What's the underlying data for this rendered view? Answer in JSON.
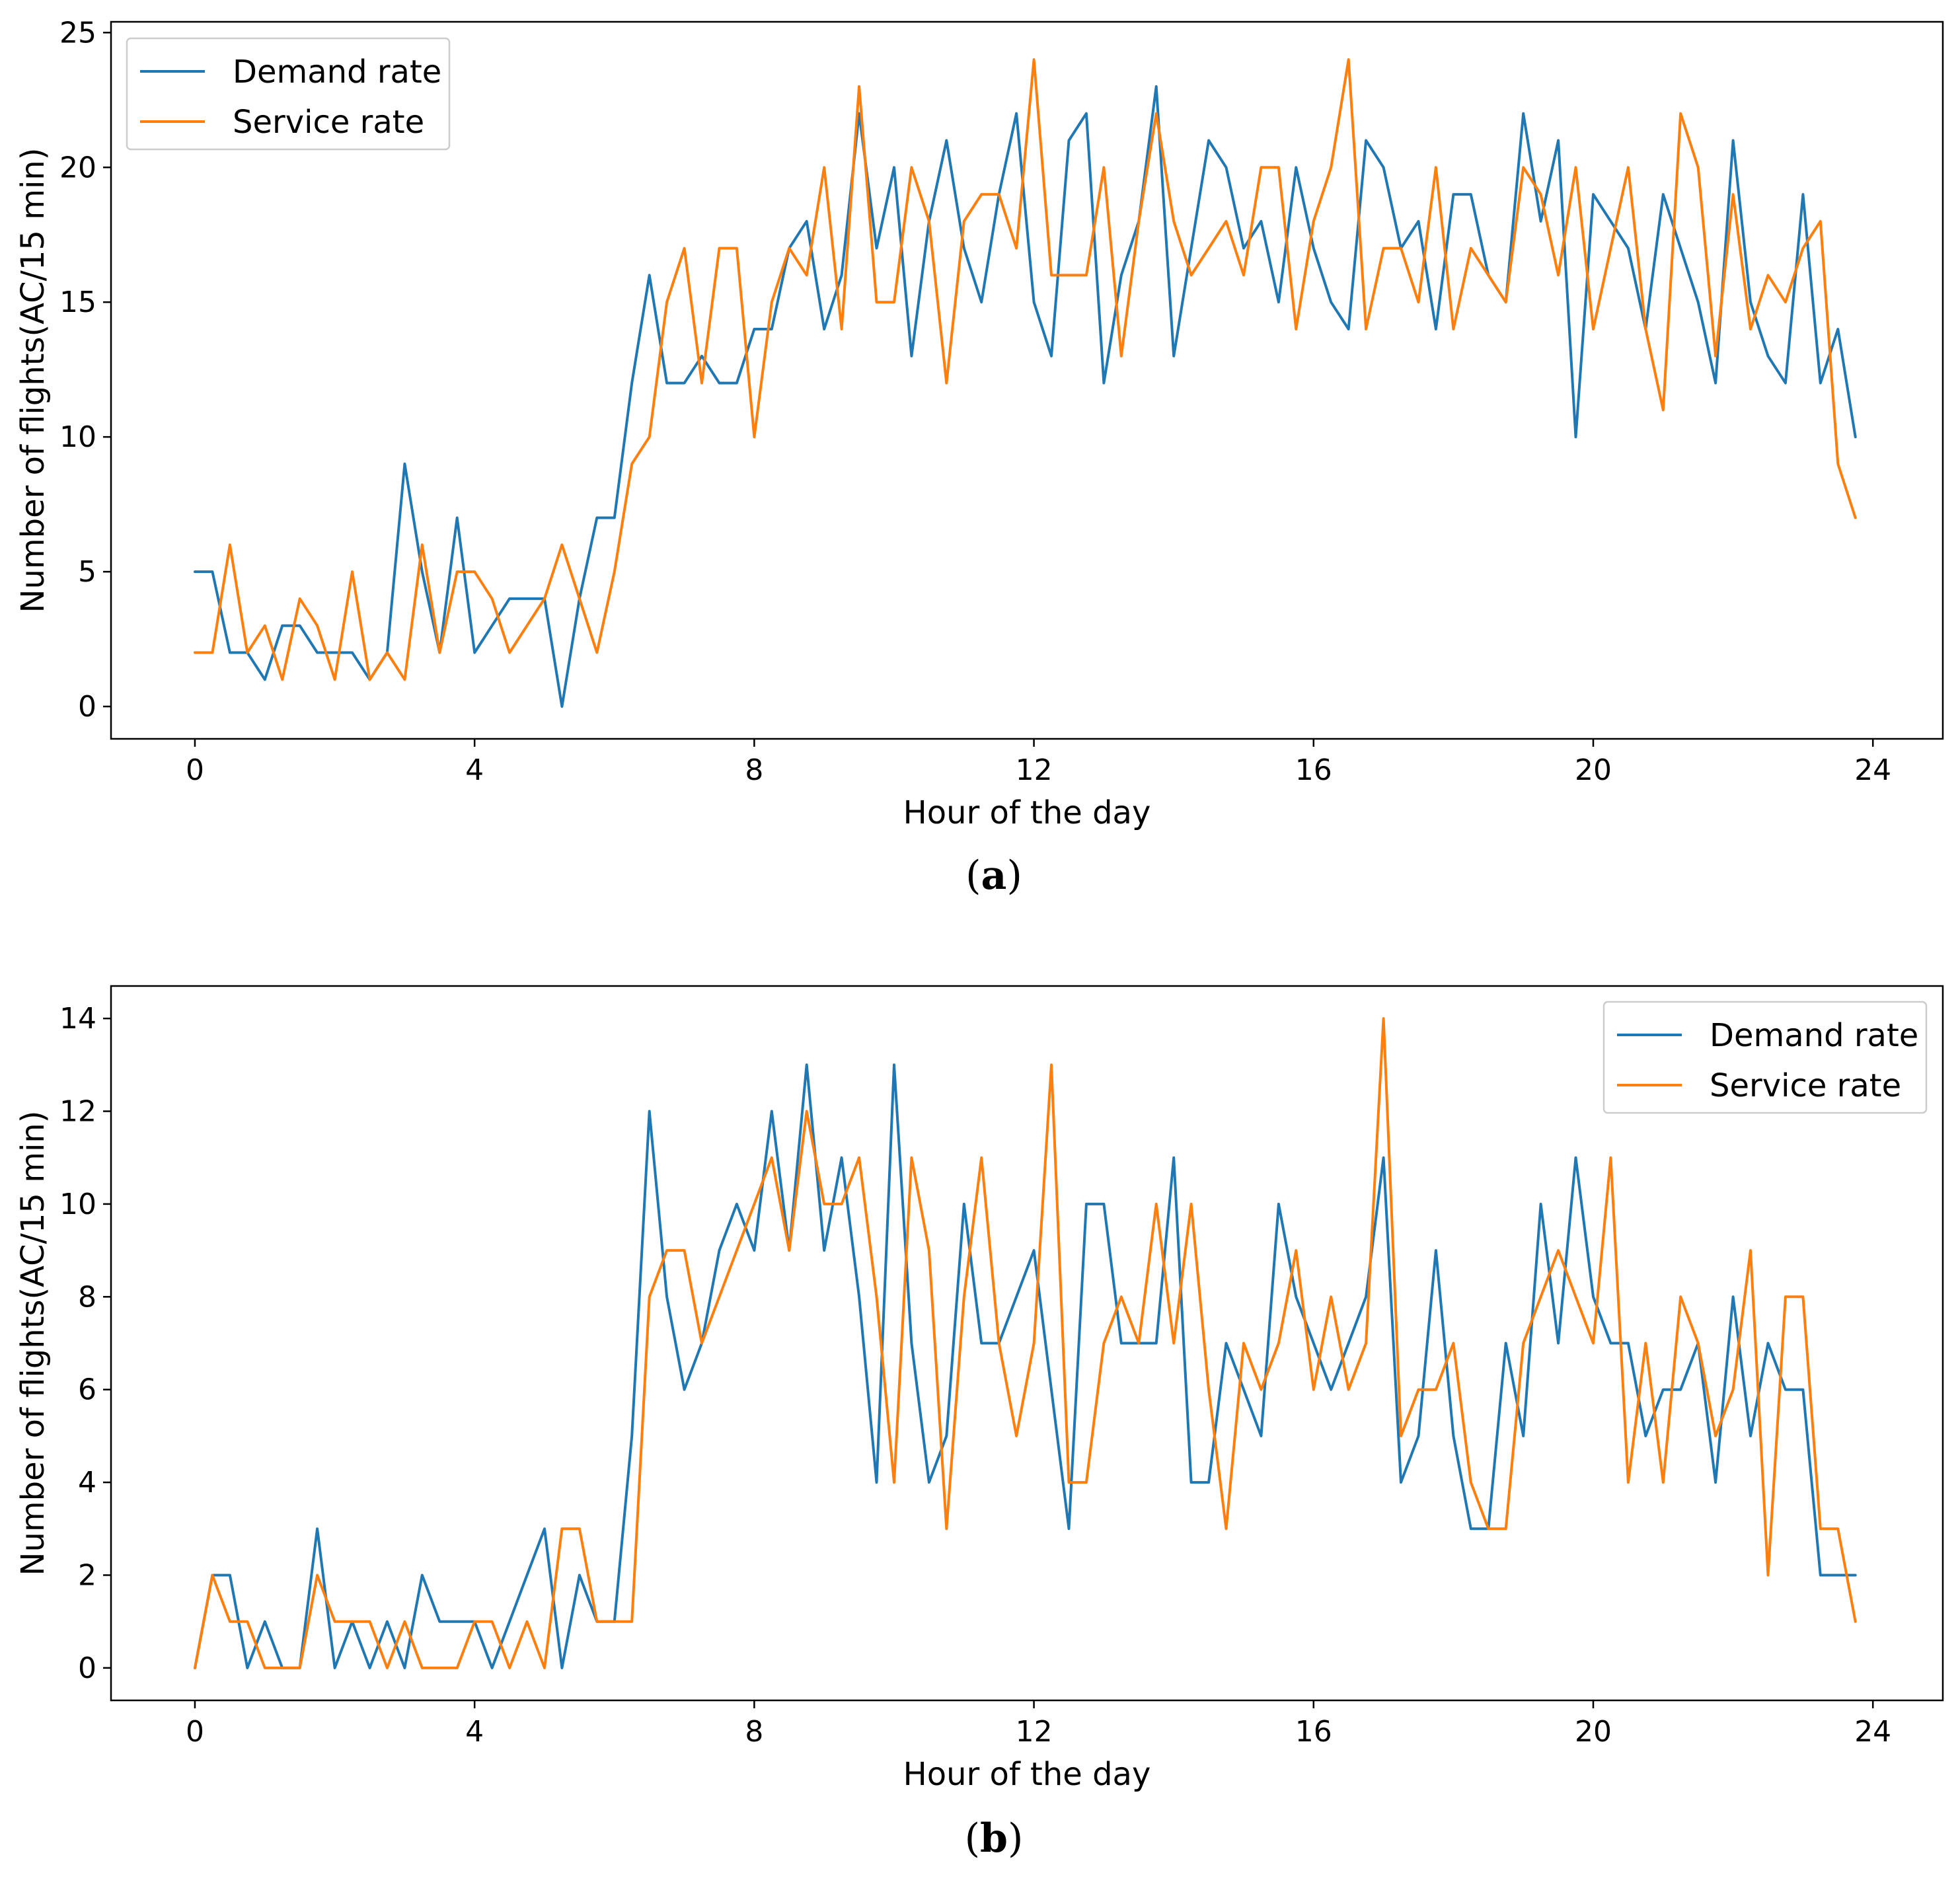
{
  "colors": {
    "demand": "#1f77b4",
    "service": "#ff7f0e"
  },
  "chart_data": [
    {
      "type": "line",
      "panel_label": "a",
      "xlabel": "Hour of the day",
      "ylabel": "Number of flights(AC/15 min)",
      "xlim": [
        -1.2,
        25
      ],
      "ylim": [
        -1.2,
        25.4
      ],
      "xticks": [
        0,
        4,
        8,
        12,
        16,
        20,
        24
      ],
      "yticks": [
        0,
        5,
        10,
        15,
        20,
        25
      ],
      "legend_position": "top-left",
      "grid": false,
      "x_step_hours": 0.25,
      "series": [
        {
          "name": "Demand rate",
          "color_key": "demand",
          "values": [
            5,
            5,
            2,
            2,
            1,
            3,
            3,
            2,
            2,
            2,
            1,
            2,
            9,
            5,
            2,
            7,
            2,
            3,
            4,
            4,
            4,
            0,
            4,
            7,
            7,
            12,
            16,
            12,
            12,
            13,
            12,
            12,
            14,
            14,
            17,
            18,
            14,
            16,
            22,
            17,
            20,
            13,
            18,
            21,
            17,
            15,
            19,
            22,
            15,
            13,
            21,
            22,
            12,
            16,
            18,
            23,
            13,
            17,
            21,
            20,
            17,
            18,
            15,
            20,
            17,
            15,
            14,
            21,
            20,
            17,
            18,
            14,
            19,
            19,
            16,
            15,
            22,
            18,
            21,
            10,
            19,
            18,
            17,
            14,
            19,
            17,
            15,
            12,
            21,
            15,
            13,
            12,
            19,
            12,
            14,
            10
          ]
        },
        {
          "name": "Service rate",
          "color_key": "service",
          "values": [
            2,
            2,
            6,
            2,
            3,
            1,
            4,
            3,
            1,
            5,
            1,
            2,
            1,
            6,
            2,
            5,
            5,
            4,
            2,
            3,
            4,
            6,
            4,
            2,
            5,
            9,
            10,
            15,
            17,
            12,
            17,
            17,
            10,
            15,
            17,
            16,
            20,
            14,
            23,
            15,
            15,
            20,
            18,
            12,
            18,
            19,
            19,
            17,
            24,
            16,
            16,
            16,
            20,
            13,
            18,
            22,
            18,
            16,
            17,
            18,
            16,
            20,
            20,
            14,
            18,
            20,
            24,
            14,
            17,
            17,
            15,
            20,
            14,
            17,
            16,
            15,
            20,
            19,
            16,
            20,
            14,
            17,
            20,
            14,
            11,
            22,
            20,
            13,
            19,
            14,
            16,
            15,
            17,
            18,
            9,
            7
          ]
        }
      ]
    },
    {
      "type": "line",
      "panel_label": "b",
      "xlabel": "Hour of the day",
      "ylabel": "Number of flights(AC/15 min)",
      "xlim": [
        -1.2,
        25
      ],
      "ylim": [
        -0.7,
        14.7
      ],
      "xticks": [
        0,
        4,
        8,
        12,
        16,
        20,
        24
      ],
      "yticks": [
        0,
        2,
        4,
        6,
        8,
        10,
        12,
        14
      ],
      "legend_position": "top-right",
      "grid": false,
      "x_step_hours": 0.25,
      "series": [
        {
          "name": "Demand rate",
          "color_key": "demand",
          "values": [
            0,
            2,
            2,
            0,
            1,
            0,
            0,
            3,
            0,
            1,
            0,
            1,
            0,
            2,
            1,
            1,
            1,
            0,
            1,
            2,
            3,
            0,
            2,
            1,
            1,
            5,
            12,
            8,
            6,
            7,
            9,
            10,
            9,
            12,
            9,
            13,
            9,
            11,
            8,
            4,
            13,
            7,
            4,
            5,
            10,
            7,
            7,
            8,
            9,
            6,
            3,
            10,
            10,
            7,
            7,
            7,
            11,
            4,
            4,
            7,
            6,
            5,
            10,
            8,
            7,
            6,
            7,
            8,
            11,
            4,
            5,
            9,
            5,
            3,
            3,
            7,
            5,
            10,
            7,
            11,
            8,
            7,
            7,
            5,
            6,
            6,
            7,
            4,
            8,
            5,
            7,
            6,
            6,
            2,
            2,
            2
          ]
        },
        {
          "name": "Service rate",
          "color_key": "service",
          "values": [
            0,
            2,
            1,
            1,
            0,
            0,
            0,
            2,
            1,
            1,
            1,
            0,
            1,
            0,
            0,
            0,
            1,
            1,
            0,
            1,
            0,
            3,
            3,
            1,
            1,
            1,
            8,
            9,
            9,
            7,
            8,
            9,
            10,
            11,
            9,
            12,
            10,
            10,
            11,
            8,
            4,
            11,
            9,
            3,
            8,
            11,
            7,
            5,
            7,
            13,
            4,
            4,
            7,
            8,
            7,
            10,
            7,
            10,
            6,
            3,
            7,
            6,
            7,
            9,
            6,
            8,
            6,
            7,
            14,
            5,
            6,
            6,
            7,
            4,
            3,
            3,
            7,
            8,
            9,
            8,
            7,
            11,
            4,
            7,
            4,
            8,
            7,
            5,
            6,
            9,
            2,
            8,
            8,
            3,
            3,
            1
          ]
        }
      ]
    }
  ]
}
